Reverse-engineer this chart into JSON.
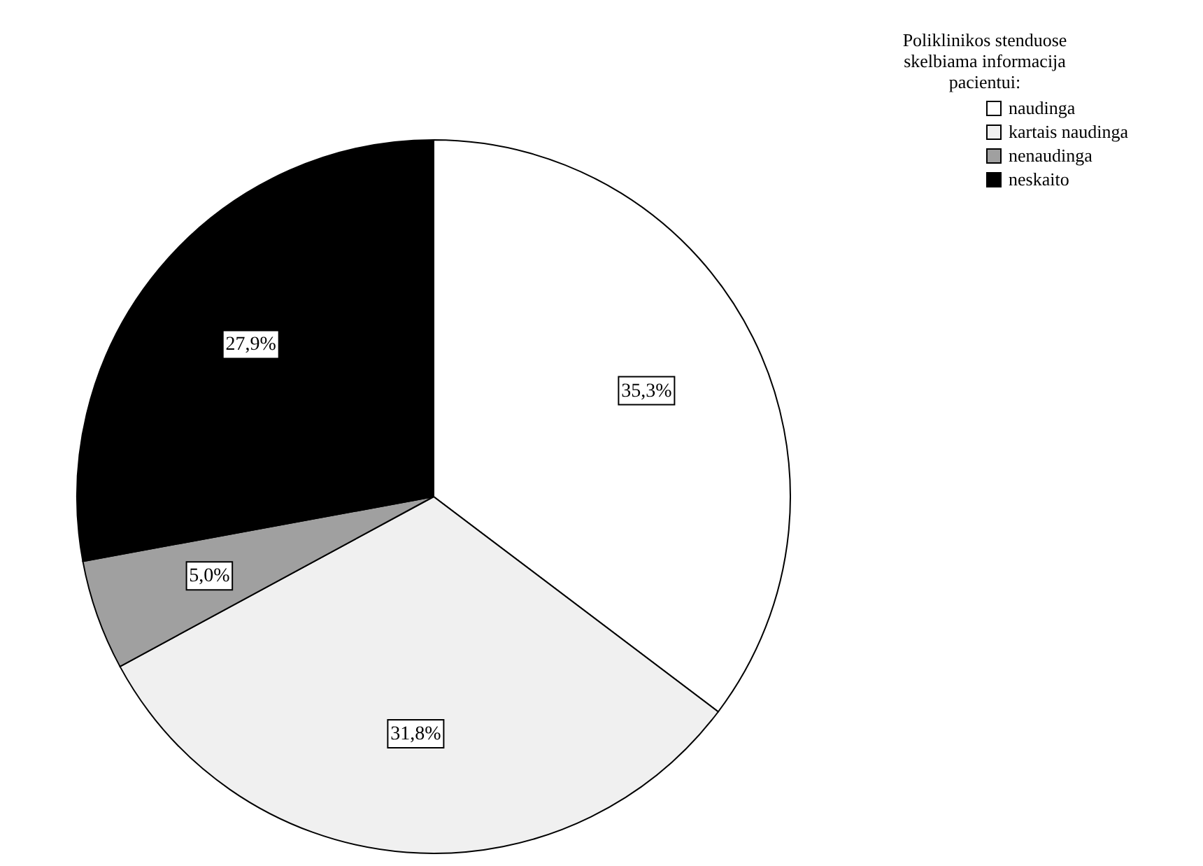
{
  "chart_data": {
    "type": "pie",
    "legend_title": "Poliklinikos stenduose\nskelbiama informacija\npacientui:",
    "categories": [
      "naudinga",
      "kartais naudinga",
      "nenaudinga",
      "neskaito"
    ],
    "values": [
      35.3,
      31.8,
      5.0,
      27.9
    ],
    "value_labels": [
      "35,3%",
      "31,8%",
      "5,0%",
      "27,9%"
    ],
    "colors": [
      "#ffffff",
      "#f0f0f0",
      "#a0a0a0",
      "#000000"
    ],
    "legend": "top right"
  }
}
